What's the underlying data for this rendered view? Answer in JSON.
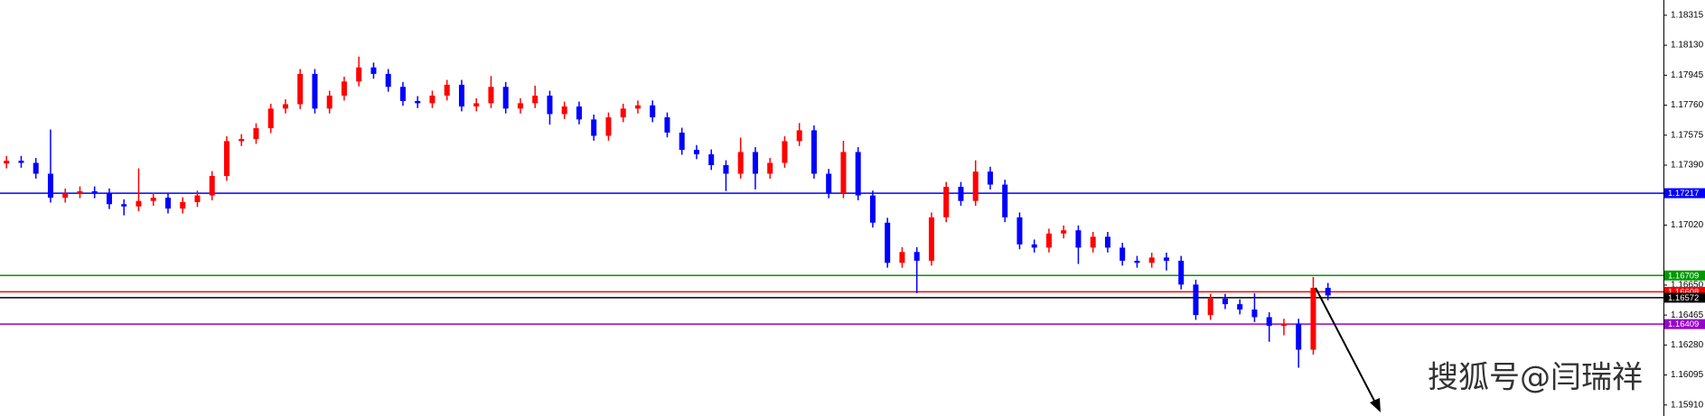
{
  "chart_data": {
    "type": "candlestick",
    "open": [
      1.174,
      1.17417,
      1.17404,
      1.17337,
      1.17189,
      1.17216,
      1.17229,
      1.17216,
      1.17149,
      1.17135,
      1.17169,
      1.17189,
      1.17122,
      1.17162,
      1.17203,
      1.17323,
      1.17538,
      1.17551,
      1.17618,
      1.17739,
      1.17766,
      1.17953,
      1.17739,
      1.17819,
      1.17906,
      1.17993,
      1.17953,
      1.17873,
      1.17786,
      1.17772,
      1.17819,
      1.17886,
      1.17752,
      1.17772,
      1.17873,
      1.17739,
      1.17772,
      1.17819,
      1.17705,
      1.17752,
      1.17672,
      1.17571,
      1.17685,
      1.17739,
      1.17759,
      1.17685,
      1.17591,
      1.17484,
      1.17457,
      1.1739,
      1.17337,
      1.17471,
      1.17337,
      1.17404,
      1.17538,
      1.17605,
      1.17337,
      1.17216,
      1.17471,
      1.17203,
      1.17035,
      1.16787,
      1.16854,
      1.168,
      1.17068,
      1.17256,
      1.17169,
      1.1735,
      1.1727,
      1.17068,
      1.16901,
      1.16881,
      1.16968,
      1.16988,
      1.16881,
      1.16948,
      1.16881,
      1.168,
      1.16787,
      1.1682,
      1.168,
      1.16653,
      1.16465,
      1.16566,
      1.16532,
      1.16499,
      1.16452,
      1.16398,
      1.16412,
      1.16251,
      1.16633
    ],
    "high": [
      1.17447,
      1.17447,
      1.17434,
      1.1761,
      1.17246,
      1.17259,
      1.17259,
      1.17246,
      1.17179,
      1.1737,
      1.17219,
      1.17219,
      1.17192,
      1.17233,
      1.17353,
      1.17568,
      1.17581,
      1.17648,
      1.17769,
      1.17796,
      1.17983,
      1.17983,
      1.17849,
      1.17936,
      1.1806,
      1.18023,
      1.17983,
      1.17903,
      1.17816,
      1.17849,
      1.17916,
      1.17916,
      1.17802,
      1.1794,
      1.17903,
      1.17802,
      1.1788,
      1.17849,
      1.17782,
      1.17782,
      1.17702,
      1.17715,
      1.17769,
      1.17789,
      1.17789,
      1.17715,
      1.17621,
      1.17514,
      1.17487,
      1.1742,
      1.1756,
      1.17501,
      1.17434,
      1.17568,
      1.1765,
      1.17635,
      1.17367,
      1.1754,
      1.17501,
      1.17233,
      1.17065,
      1.16884,
      1.16884,
      1.17098,
      1.17286,
      1.17286,
      1.1742,
      1.1738,
      1.173,
      1.17098,
      1.16931,
      1.16998,
      1.17018,
      1.17018,
      1.16978,
      1.16978,
      1.16911,
      1.1683,
      1.1685,
      1.1685,
      1.1683,
      1.16683,
      1.16596,
      1.16596,
      1.16562,
      1.166,
      1.16482,
      1.16442,
      1.16442,
      1.167,
      1.16663
    ],
    "low": [
      1.1737,
      1.17374,
      1.17307,
      1.17159,
      1.17159,
      1.17186,
      1.17186,
      1.17119,
      1.1708,
      1.17105,
      1.17139,
      1.17092,
      1.17092,
      1.17132,
      1.17173,
      1.17293,
      1.17508,
      1.17521,
      1.17588,
      1.17709,
      1.17736,
      1.17709,
      1.17709,
      1.17789,
      1.17876,
      1.17923,
      1.17843,
      1.17756,
      1.17742,
      1.17742,
      1.17789,
      1.17722,
      1.17722,
      1.17742,
      1.17709,
      1.17709,
      1.17742,
      1.1764,
      1.17675,
      1.17642,
      1.17541,
      1.17541,
      1.17655,
      1.17709,
      1.17655,
      1.17561,
      1.17454,
      1.17427,
      1.1736,
      1.1723,
      1.17307,
      1.1724,
      1.17307,
      1.17374,
      1.17508,
      1.17307,
      1.17186,
      1.17186,
      1.17173,
      1.17005,
      1.16757,
      1.16757,
      1.166,
      1.1677,
      1.17038,
      1.17139,
      1.17139,
      1.1724,
      1.17038,
      1.16871,
      1.16851,
      1.16851,
      1.16938,
      1.1678,
      1.16851,
      1.16851,
      1.1677,
      1.16757,
      1.16757,
      1.1674,
      1.16623,
      1.16435,
      1.16435,
      1.16502,
      1.16469,
      1.16422,
      1.163,
      1.1634,
      1.1614,
      1.16221,
      1.16556
    ],
    "close": [
      1.17417,
      1.17404,
      1.17337,
      1.17189,
      1.17216,
      1.17229,
      1.17216,
      1.17149,
      1.17135,
      1.17169,
      1.17189,
      1.17122,
      1.17162,
      1.17203,
      1.17323,
      1.17538,
      1.17551,
      1.17618,
      1.17739,
      1.17766,
      1.17953,
      1.17739,
      1.17819,
      1.17906,
      1.17993,
      1.17953,
      1.17873,
      1.17786,
      1.17772,
      1.17819,
      1.17886,
      1.17752,
      1.17772,
      1.17873,
      1.17739,
      1.17772,
      1.17819,
      1.17705,
      1.17752,
      1.17672,
      1.17571,
      1.17685,
      1.17739,
      1.17759,
      1.17685,
      1.17591,
      1.17484,
      1.17457,
      1.1739,
      1.17337,
      1.17471,
      1.17337,
      1.17404,
      1.17538,
      1.17605,
      1.17337,
      1.17216,
      1.17471,
      1.17203,
      1.17035,
      1.16787,
      1.16854,
      1.168,
      1.17068,
      1.17256,
      1.17169,
      1.1735,
      1.1727,
      1.17068,
      1.16901,
      1.16881,
      1.16968,
      1.16988,
      1.16881,
      1.16948,
      1.16881,
      1.168,
      1.16787,
      1.1682,
      1.168,
      1.16653,
      1.16465,
      1.16566,
      1.16532,
      1.16499,
      1.16452,
      1.16398,
      1.16412,
      1.16251,
      1.16633,
      1.16586
    ],
    "up_color": "#ff0000",
    "down_color": "#0000ff",
    "ylim": [
      1.15842,
      1.18409
    ],
    "yticks": [
      1.18315,
      {
        "value": 1.1813,
        "label": "1.18130"
      },
      1.17945,
      {
        "value": 1.1776,
        "label": "1.17760"
      },
      1.17575,
      {
        "value": 1.1739,
        "label": "1.17390"
      },
      {
        "value": 1.1702,
        "label": "1.17020"
      },
      {
        "value": 1.1665,
        "label": "1.16650"
      },
      1.16465,
      {
        "value": 1.1628,
        "label": "1.16280"
      },
      1.16095,
      {
        "value": 1.1591,
        "label": "1.15910"
      }
    ],
    "levels": [
      {
        "value": 1.17217,
        "color": "#0000ff"
      },
      {
        "value": 1.16709,
        "color": "#009900"
      },
      {
        "value": 1.16608,
        "color": "#ff0000"
      },
      {
        "value": 1.16572,
        "color": "#000000"
      },
      {
        "value": 1.16409,
        "color": "#9900cc"
      }
    ],
    "watermark": "搜狐号@闫瑞祥"
  }
}
